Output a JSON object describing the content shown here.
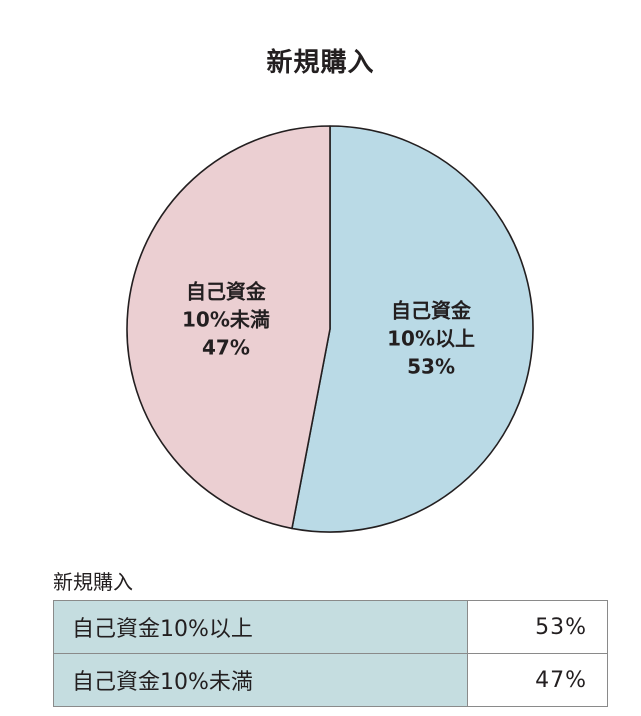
{
  "chart_data": {
    "type": "pie",
    "title": "新規購入",
    "slices": [
      {
        "label_lines": [
          "自己資金",
          "10%以上",
          "53%"
        ],
        "value": 53,
        "color": "#badae6"
      },
      {
        "label_lines": [
          "自己資金",
          "10%未満",
          "47%"
        ],
        "value": 47,
        "color": "#ebcfd2"
      }
    ],
    "start": "top",
    "direction": "clockwise"
  },
  "table": {
    "title": "新規購入",
    "rows": [
      {
        "label": "自己資金10%以上",
        "value": "53%"
      },
      {
        "label": "自己資金10%未満",
        "value": "47%"
      }
    ]
  },
  "colors": {
    "outline": "#231f20",
    "table_header_bg": "#c5dde0",
    "table_border": "#8a8a8a"
  }
}
